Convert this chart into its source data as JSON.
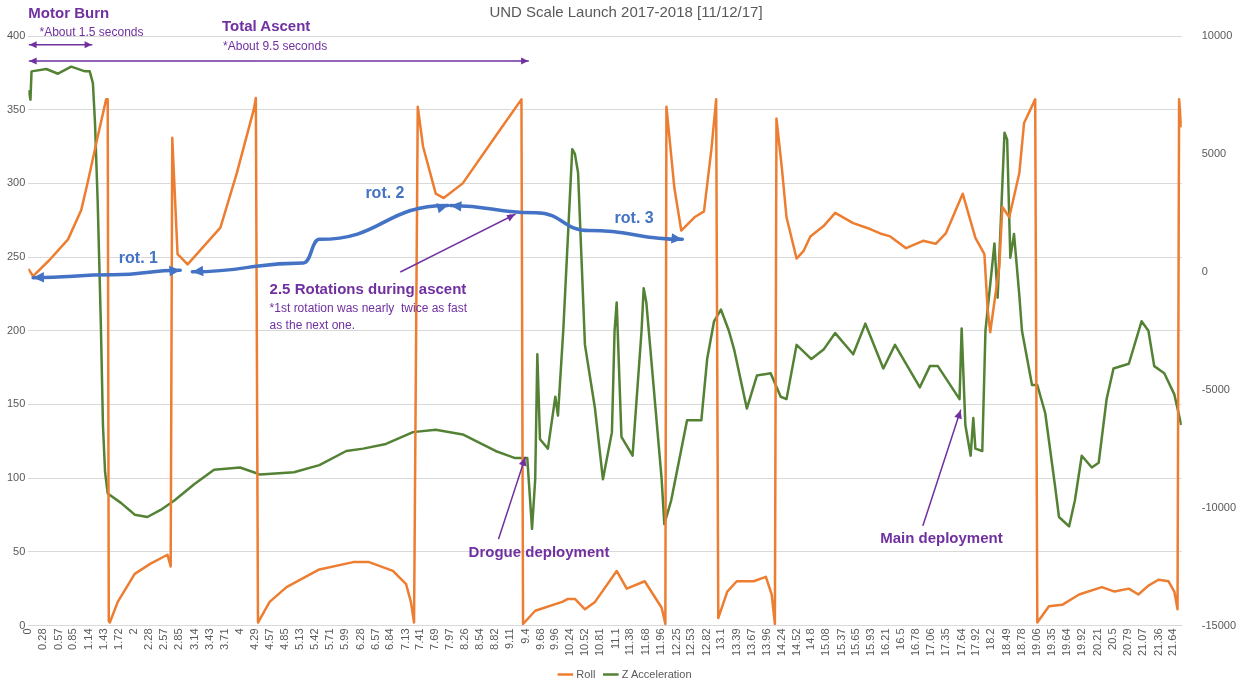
{
  "chart_data": {
    "type": "line",
    "title": "UND Scale Launch 2017-2018 [11/12/17]",
    "xlim": [
      0,
      21.8
    ],
    "xticks": [
      0,
      0.28,
      0.57,
      0.85,
      1.14,
      1.43,
      1.72,
      2,
      2.28,
      2.57,
      2.85,
      3.14,
      3.43,
      3.71,
      4,
      4.29,
      4.57,
      4.85,
      5.13,
      5.42,
      5.71,
      5.99,
      6.28,
      6.57,
      6.84,
      7.13,
      7.41,
      7.69,
      7.97,
      8.26,
      8.54,
      8.82,
      9.11,
      9.4,
      9.68,
      9.96,
      10.24,
      10.52,
      10.81,
      11.1,
      11.38,
      11.68,
      11.96,
      12.25,
      12.53,
      12.82,
      13.1,
      13.39,
      13.67,
      13.96,
      14.24,
      14.52,
      14.8,
      15.08,
      15.37,
      15.65,
      15.93,
      16.21,
      16.5,
      16.78,
      17.06,
      17.35,
      17.64,
      17.92,
      18.2,
      18.49,
      18.78,
      19.06,
      19.35,
      19.64,
      19.92,
      20.21,
      20.5,
      20.79,
      21.07,
      21.36,
      21.64
    ],
    "ylim": [
      0,
      400
    ],
    "yticks": [
      0,
      50,
      100,
      150,
      200,
      250,
      300,
      350,
      400
    ],
    "y2lim": [
      -15000,
      10000
    ],
    "y2ticks": [
      -15000,
      -10000,
      -5000,
      0,
      5000,
      10000
    ],
    "grid": "y",
    "legend": "bottom",
    "series": [
      {
        "name": "Roll",
        "color": "#ed7d31",
        "x": [
          0,
          0.09,
          0.4,
          0.75,
          1.0,
          1.13,
          1.3,
          1.47,
          1.5,
          1.52,
          1.54,
          1.69,
          2.01,
          2.31,
          2.63,
          2.69,
          2.72,
          2.82,
          3.01,
          3.63,
          3.94,
          4.26,
          4.3,
          4.34,
          4.56,
          4.88,
          5.5,
          6.14,
          6.44,
          6.89,
          7.14,
          7.23,
          7.29,
          7.36,
          7.46,
          7.7,
          7.85,
          8.21,
          8.83,
          9.32,
          9.35,
          9.58,
          10.09,
          10.2,
          10.33,
          10.52,
          10.71,
          11.12,
          11.31,
          11.65,
          11.97,
          12.04,
          12.06,
          12.21,
          12.34,
          12.59,
          12.77,
          12.91,
          13.0,
          13.04,
          13.21,
          13.39,
          13.71,
          13.94,
          14.05,
          14.11,
          14.14,
          14.24,
          14.33,
          14.52,
          14.65,
          14.78,
          15.03,
          15.25,
          15.59,
          15.91,
          16.1,
          16.29,
          16.59,
          16.91,
          17.15,
          17.34,
          17.66,
          17.9,
          18.07,
          18.13,
          18.18,
          18.35,
          18.41,
          18.54,
          18.73,
          18.82,
          19.03,
          19.07,
          19.29,
          19.54,
          19.86,
          20.29,
          20.53,
          20.8,
          20.98,
          21.17,
          21.36,
          21.55,
          21.66,
          21.72,
          21.75,
          21.79
        ],
        "values": [
          242,
          237,
          248,
          262,
          282,
          302,
          330,
          357,
          357,
          3,
          2,
          16,
          35,
          42,
          48,
          40,
          331,
          252,
          245,
          270,
          307,
          350,
          358,
          2,
          16,
          26,
          38,
          43,
          43,
          37,
          28,
          16,
          2,
          352,
          325,
          293,
          290,
          300,
          332,
          357,
          1,
          10,
          16,
          18,
          18,
          11,
          16,
          37,
          25,
          30,
          12,
          1,
          352,
          297,
          268,
          277,
          281,
          323,
          357,
          5,
          23,
          30,
          30,
          33,
          21,
          1,
          344,
          311,
          277,
          249,
          254,
          264,
          271,
          280,
          273,
          269,
          266,
          264,
          256,
          261,
          259,
          266,
          293,
          263,
          252,
          215,
          199,
          243,
          284,
          277,
          307,
          341,
          357,
          2,
          13,
          14,
          21,
          26,
          23,
          25,
          21,
          27,
          31,
          30,
          23,
          11,
          357,
          338
        ]
      },
      {
        "name": "Z Acceleration",
        "color": "#548235",
        "axis": "y2",
        "x": [
          0,
          0.04,
          0.06,
          0.34,
          0.56,
          0.81,
          1.07,
          1.16,
          1.22,
          1.26,
          1.31,
          1.37,
          1.41,
          1.45,
          1.5,
          1.75,
          2.01,
          2.25,
          2.5,
          2.76,
          3.14,
          3.51,
          4.0,
          4.26,
          4.38,
          5.02,
          5.5,
          6.01,
          6.33,
          6.76,
          7.27,
          7.7,
          8.21,
          8.83,
          9.2,
          9.43,
          9.52,
          9.58,
          9.62,
          9.67,
          9.82,
          9.96,
          10.01,
          10.11,
          10.28,
          10.33,
          10.39,
          10.52,
          10.71,
          10.86,
          11.03,
          11.08,
          11.12,
          11.21,
          11.42,
          11.59,
          11.63,
          11.68,
          11.97,
          12.02,
          12.15,
          12.45,
          12.72,
          12.83,
          12.96,
          13.09,
          13.24,
          13.34,
          13.58,
          13.77,
          14.03,
          14.22,
          14.33,
          14.52,
          14.8,
          15.03,
          15.25,
          15.59,
          15.82,
          15.91,
          16.16,
          16.38,
          16.85,
          17.04,
          17.19,
          17.6,
          17.64,
          17.71,
          17.81,
          17.86,
          17.9,
          18.03,
          18.09,
          18.26,
          18.32,
          18.45,
          18.5,
          18.56,
          18.63,
          18.73,
          18.78,
          18.97,
          19.07,
          19.22,
          19.4,
          19.48,
          19.67,
          19.78,
          19.91,
          20.1,
          20.23,
          20.38,
          20.51,
          20.8,
          21.04,
          21.17,
          21.28,
          21.47,
          21.66,
          21.79
        ],
        "values": [
          7700,
          7300,
          8500,
          8600,
          8400,
          8700,
          8500,
          8500,
          8000,
          6300,
          3000,
          -2200,
          -6500,
          -8500,
          -9400,
          -9800,
          -10300,
          -10400,
          -10100,
          -9700,
          -9000,
          -8400,
          -8300,
          -8500,
          -8600,
          -8500,
          -8200,
          -7600,
          -7500,
          -7300,
          -6800,
          -6700,
          -6900,
          -7600,
          -7900,
          -7900,
          -10900,
          -8800,
          -3500,
          -7100,
          -7500,
          -5300,
          -6100,
          -2500,
          5200,
          5000,
          4200,
          -3100,
          -5800,
          -8800,
          -6800,
          -2500,
          -1300,
          -7000,
          -7800,
          -2500,
          -700,
          -1300,
          -8800,
          -10700,
          -9700,
          -6300,
          -6300,
          -3700,
          -2100,
          -1600,
          -2500,
          -3300,
          -5800,
          -4400,
          -4300,
          -5300,
          -5400,
          -3100,
          -3700,
          -3300,
          -2600,
          -3500,
          -2200,
          -2700,
          -4100,
          -3100,
          -4900,
          -4000,
          -4000,
          -5400,
          -2400,
          -6500,
          -7800,
          -6200,
          -7500,
          -7600,
          -2500,
          1200,
          -1100,
          5900,
          5600,
          600,
          1600,
          -1000,
          -2500,
          -4800,
          -4800,
          -6000,
          -9000,
          -10400,
          -10800,
          -9700,
          -7800,
          -8300,
          -8100,
          -5400,
          -4100,
          -3900,
          -2100,
          -2500,
          -4000,
          -4300,
          -5200,
          -6500
        ]
      }
    ],
    "annotations": [
      "Motor Burn",
      "*About 1.5 seconds",
      "Total Ascent",
      "*About 9.5 seconds",
      "rot. 1",
      "rot. 2",
      "rot. 3",
      "2.5 Rotations during ascent",
      "*1st rotation was nearly  twice as fast as the next one.",
      {
        "text": "Drogue deployment",
        "x": 9.39,
        "y": 114
      },
      {
        "text": "Main deployment",
        "x": 17.62,
        "y": 146
      }
    ]
  }
}
